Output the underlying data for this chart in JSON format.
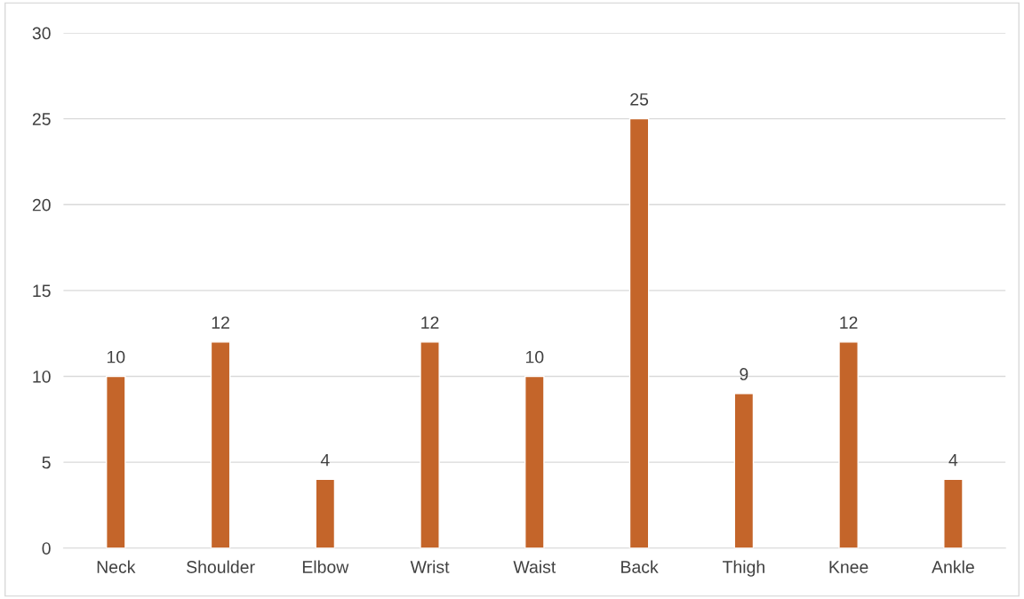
{
  "chart_data": {
    "type": "bar",
    "categories": [
      "Neck",
      "Shoulder",
      "Elbow",
      "Wrist",
      "Waist",
      "Back",
      "Thigh",
      "Knee",
      "Ankle"
    ],
    "values": [
      10,
      12,
      4,
      12,
      10,
      25,
      9,
      12,
      4
    ],
    "color": "#c4652a",
    "ylim": [
      0,
      30
    ],
    "yticks": [
      0,
      5,
      10,
      15,
      20,
      25,
      30
    ],
    "grid": "y",
    "data_labels": true
  }
}
